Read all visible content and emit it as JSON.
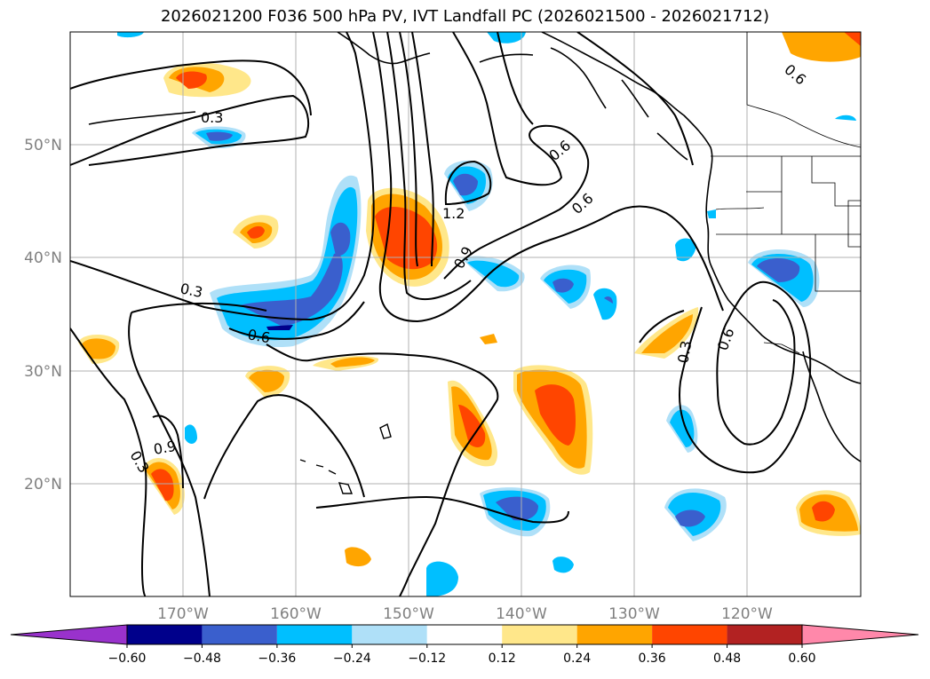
{
  "title": "2026021200 F036 500 hPa PV, IVT Landfall PC (2026021500 - 2026021712)",
  "map": {
    "projection": "PlateCarree",
    "lon_range": [
      -180,
      -110
    ],
    "lat_range": [
      10,
      60
    ],
    "lat_ticks": [
      {
        "value": 20,
        "label": "20°N"
      },
      {
        "value": 30,
        "label": "30°N"
      },
      {
        "value": 40,
        "label": "40°N"
      },
      {
        "value": 50,
        "label": "50°N"
      }
    ],
    "lon_ticks": [
      {
        "value": -170,
        "label": "170°W"
      },
      {
        "value": -160,
        "label": "160°W"
      },
      {
        "value": -150,
        "label": "150°W"
      },
      {
        "value": -140,
        "label": "140°W"
      },
      {
        "value": -130,
        "label": "130°W"
      },
      {
        "value": -120,
        "label": "120°W"
      }
    ],
    "gridlines": true
  },
  "contour_labels": [
    "0.3",
    "0.3",
    "0.6",
    "0.6",
    "0.6",
    "0.6",
    "0.9",
    "1.2",
    "0.3",
    "0.6",
    "0.9",
    "0.3"
  ],
  "colorbar": {
    "extend": "both",
    "levels": [
      -0.6,
      -0.48,
      -0.36,
      -0.24,
      -0.12,
      0.12,
      0.24,
      0.36,
      0.48,
      0.6
    ],
    "tick_labels": [
      "−0.60",
      "−0.48",
      "−0.36",
      "−0.24",
      "−0.12",
      "0.12",
      "0.24",
      "0.36",
      "0.48",
      "0.60"
    ],
    "colors": [
      "#9932cc",
      "#00008b",
      "#3a5fcd",
      "#00bfff",
      "#afe0f8",
      "#ffffff",
      "#ffe78a",
      "#ffa500",
      "#ff4500",
      "#b22222",
      "#ff88aa"
    ]
  }
}
